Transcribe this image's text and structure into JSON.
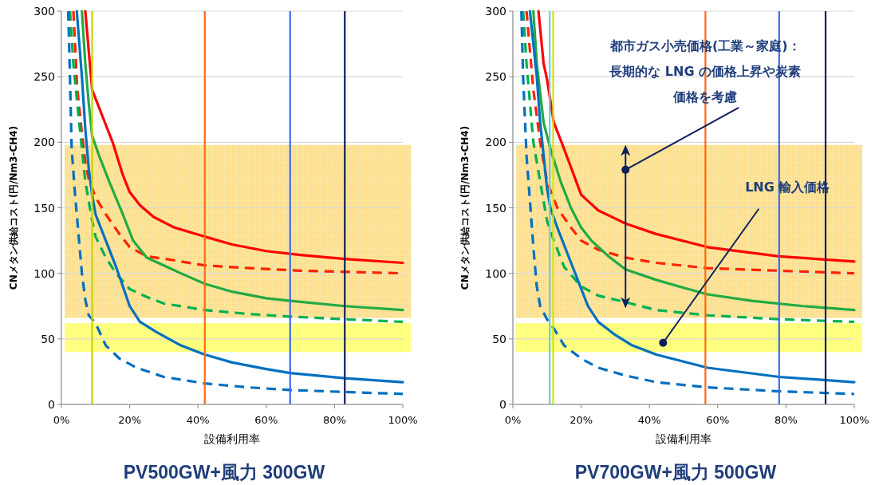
{
  "chart_data": [
    {
      "type": "line",
      "title": "PV500GW+風力 300GW",
      "xlabel": "設備利用率",
      "ylabel": "CNメタン供給コスト(円/Nm3-CH4)",
      "xlim": [
        0,
        100
      ],
      "xticks": [
        {
          "value": 0,
          "label": "0%"
        },
        {
          "value": 20,
          "label": "20%"
        },
        {
          "value": 40,
          "label": "40%"
        },
        {
          "value": 60,
          "label": "60%"
        },
        {
          "value": 80,
          "label": "80%"
        },
        {
          "value": 100,
          "label": "100%"
        }
      ],
      "ylim": [
        0,
        300
      ],
      "yticks": [
        0,
        50,
        100,
        150,
        200,
        250,
        300
      ],
      "grid": "y",
      "bands": [
        {
          "axis": "y",
          "from": 66,
          "to": 198,
          "color": "#fde6a0"
        },
        {
          "axis": "y",
          "from": 40,
          "to": 62,
          "color": "#ffff80"
        }
      ],
      "series": [
        {
          "color": "#ff0000",
          "line_style": "solid",
          "x": [
            7,
            9,
            12,
            15,
            18,
            20,
            23,
            27,
            33,
            42,
            50,
            60,
            70,
            83,
            100
          ],
          "values": [
            300,
            240,
            220,
            200,
            175,
            162,
            152,
            143,
            135,
            128,
            122,
            117,
            114,
            111,
            108
          ]
        },
        {
          "color": "#ff2200",
          "line_style": "dashed",
          "x": [
            3.5,
            4.6,
            6,
            7,
            8,
            10,
            13,
            17,
            20,
            25,
            33,
            42,
            55,
            70,
            85,
            100
          ],
          "values": [
            300,
            242,
            207,
            185,
            172,
            158,
            145,
            130,
            120,
            113,
            110,
            106,
            104,
            102,
            101,
            100
          ]
        },
        {
          "color": "#22aa44",
          "line_style": "solid",
          "x": [
            6,
            7,
            8,
            9,
            11,
            14,
            18,
            21,
            25,
            30,
            35,
            42,
            50,
            60,
            67,
            83,
            100
          ],
          "values": [
            300,
            260,
            230,
            205,
            190,
            170,
            145,
            125,
            112,
            106,
            100,
            92,
            86,
            81,
            79,
            75,
            72
          ]
        },
        {
          "color": "#00b050",
          "line_style": "dashed",
          "x": [
            2.5,
            3.5,
            5,
            6,
            7,
            9,
            10,
            13,
            16,
            20,
            25,
            30,
            42,
            55,
            67,
            83,
            100
          ],
          "values": [
            300,
            260,
            220,
            195,
            170,
            140,
            128,
            112,
            100,
            88,
            82,
            77,
            72,
            69,
            67,
            65,
            63
          ]
        },
        {
          "color": "#0070c0",
          "line_style": "solid",
          "x": [
            4.5,
            6,
            7,
            8,
            9,
            10,
            13,
            16,
            18,
            20,
            23,
            28,
            35,
            42,
            50,
            60,
            67,
            83,
            100
          ],
          "values": [
            300,
            250,
            210,
            180,
            160,
            145,
            125,
            105,
            90,
            75,
            63,
            55,
            45,
            38,
            32,
            27,
            24,
            20,
            17
          ]
        },
        {
          "color": "#0070c0",
          "line_style": "dashed",
          "x": [
            2,
            2.5,
            3,
            4,
            5,
            6,
            7,
            8,
            10,
            13,
            17,
            22,
            30,
            42,
            55,
            67,
            83,
            100
          ],
          "values": [
            300,
            250,
            195,
            160,
            130,
            100,
            80,
            68,
            62,
            45,
            35,
            28,
            21,
            16,
            13,
            11,
            9.5,
            8
          ]
        }
      ],
      "ref_lines": [
        {
          "axis": "x",
          "value": 9,
          "color": "#c8d400"
        },
        {
          "axis": "x",
          "value": 42,
          "color": "#ff6a10"
        },
        {
          "axis": "x",
          "value": 67,
          "color": "#3b6cf0"
        },
        {
          "axis": "x",
          "value": 83,
          "color": "#0d1f5c"
        }
      ]
    },
    {
      "type": "line",
      "title": "PV700GW+風力 500GW",
      "xlabel": "設備利用率",
      "ylabel": "CNメタン供給コスト(円/Nm3-CH4)",
      "xlim": [
        0,
        100
      ],
      "xticks": [
        {
          "value": 0,
          "label": "0%"
        },
        {
          "value": 20,
          "label": "20%"
        },
        {
          "value": 40,
          "label": "40%"
        },
        {
          "value": 60,
          "label": "60%"
        },
        {
          "value": 80,
          "label": "80%"
        },
        {
          "value": 100,
          "label": "100%"
        }
      ],
      "ylim": [
        0,
        300
      ],
      "yticks": [
        0,
        50,
        100,
        150,
        200,
        250,
        300
      ],
      "grid": "y",
      "bands": [
        {
          "axis": "y",
          "from": 66,
          "to": 198,
          "color": "#fde6a0"
        },
        {
          "axis": "y",
          "from": 40,
          "to": 62,
          "color": "#ffff80"
        }
      ],
      "series": [
        {
          "color": "#ff0000",
          "line_style": "solid",
          "x": [
            7.5,
            9,
            10,
            12,
            15,
            20,
            25,
            33,
            42,
            57,
            78,
            100
          ],
          "values": [
            300,
            260,
            248,
            215,
            195,
            160,
            148,
            138,
            130,
            120,
            113,
            109
          ]
        },
        {
          "color": "#ff2200",
          "line_style": "dashed",
          "x": [
            4,
            6,
            8,
            10,
            13,
            17,
            20,
            25,
            33,
            42,
            57,
            78,
            100
          ],
          "values": [
            300,
            240,
            200,
            170,
            150,
            135,
            125,
            118,
            112,
            108,
            104,
            102,
            100
          ]
        },
        {
          "color": "#22aa44",
          "line_style": "solid",
          "x": [
            6,
            7,
            9,
            11,
            14,
            17,
            20,
            23,
            28,
            33,
            42,
            50,
            57,
            70,
            85,
            100
          ],
          "values": [
            300,
            260,
            215,
            195,
            170,
            150,
            135,
            125,
            113,
            103,
            95,
            89,
            84,
            79,
            75,
            72
          ]
        },
        {
          "color": "#00b050",
          "line_style": "dashed",
          "x": [
            3,
            4,
            5,
            6,
            8,
            10,
            12,
            15,
            20,
            25,
            33,
            42,
            57,
            78,
            100
          ],
          "values": [
            300,
            260,
            230,
            200,
            170,
            140,
            125,
            105,
            90,
            83,
            78,
            72,
            68,
            65,
            63
          ]
        },
        {
          "color": "#0070c0",
          "line_style": "solid",
          "x": [
            5,
            7,
            8,
            9,
            10,
            11,
            13,
            16,
            19,
            22,
            25,
            30,
            35,
            42,
            57,
            78,
            100
          ],
          "values": [
            300,
            250,
            215,
            190,
            165,
            150,
            135,
            115,
            95,
            75,
            63,
            53,
            45,
            38,
            28,
            21,
            17
          ]
        },
        {
          "color": "#0070c0",
          "line_style": "dashed",
          "x": [
            2.5,
            3,
            4,
            5,
            6,
            7,
            8,
            10,
            12,
            15,
            20,
            25,
            33,
            42,
            57,
            78,
            100
          ],
          "values": [
            300,
            250,
            190,
            155,
            120,
            90,
            75,
            65,
            58,
            45,
            35,
            28,
            22,
            17,
            13,
            10,
            8
          ]
        }
      ],
      "ref_lines": [
        {
          "axis": "x",
          "value": 10.8,
          "color": "#66ccee"
        },
        {
          "axis": "x",
          "value": 11.8,
          "color": "#d8e000"
        },
        {
          "axis": "x",
          "value": 56.4,
          "color": "#ff6a10"
        },
        {
          "axis": "x",
          "value": 78,
          "color": "#3b6cf0"
        },
        {
          "axis": "x",
          "value": 91.6,
          "color": "#0d1f5c"
        }
      ],
      "annotations": [
        {
          "text": "都市ガス小売価格(工業～家庭)：長期的な LNG の価格上昇や炭素価格を考慮",
          "x": 33,
          "y": 179
        },
        {
          "text": "LNG 輸入価格",
          "x": 44,
          "y": 47
        }
      ]
    }
  ]
}
